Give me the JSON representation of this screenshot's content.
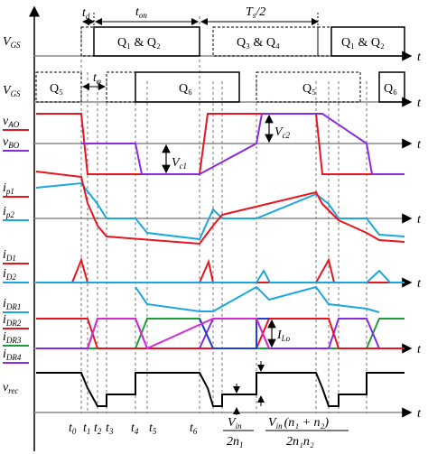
{
  "rows": {
    "vgs1": "V",
    "vgs1_sub": "GS",
    "vgs2": "V",
    "vgs2_sub": "GS",
    "vao": "v",
    "vao_sub": "AO",
    "vbo": "v",
    "vbo_sub": "BO",
    "ip1": "i",
    "ip1_sub": "p1",
    "ip2": "i",
    "ip2_sub": "p2",
    "id1": "i",
    "id1_sub": "D1",
    "id2": "i",
    "id2_sub": "D2",
    "idr1": "i",
    "idr1_sub": "DR1",
    "idr2": "i",
    "idr2_sub": "DR2",
    "idr3": "i",
    "idr3_sub": "DR3",
    "idr4": "i",
    "idr4_sub": "DR4",
    "vrec": "v",
    "vrec_sub": "rec"
  },
  "time_axis": "t",
  "intervals": {
    "td": "t",
    "td_sub": "d",
    "ton": "t",
    "ton_sub": "on",
    "ts": "T",
    "ts_sub": "s",
    "ts_tail": "/2",
    "tphi": "t",
    "tphi_sub": "φ"
  },
  "gates_top": [
    "Q₁ & Q₂",
    "Q₃ & Q₄",
    "Q₁ & Q₂"
  ],
  "gates_bottom": [
    "Q₅",
    "Q₆",
    "Q₅",
    "Q₆"
  ],
  "annotations": {
    "vc1": "V",
    "vc1_sub": "c1",
    "vc2": "V",
    "vc2_sub": "c2",
    "ilo": "I",
    "ilo_sub": "Lo",
    "vin_frac1_num": "V",
    "vin_frac1_num_sub": "in",
    "vin_frac1_den": "2n",
    "vin_frac1_den_sub": "1",
    "vin_frac2_num": "V",
    "vin_frac2_num_sub": "in",
    "vin_frac2_paren": "(n₁ + n₂)",
    "vin_frac2_den": "2n₁n₂"
  },
  "time_markers": [
    {
      "label": "t",
      "sub": "0"
    },
    {
      "label": "t",
      "sub": "1"
    },
    {
      "label": "t",
      "sub": "2"
    },
    {
      "label": "t",
      "sub": "3"
    },
    {
      "label": "t",
      "sub": "4"
    },
    {
      "label": "t",
      "sub": "5"
    },
    {
      "label": "t",
      "sub": "6"
    }
  ],
  "colors": {
    "red": "#e8141e",
    "purple": "#8a2be2",
    "cyan": "#1aa7e0",
    "blue": "#1f3fd6",
    "magenta": "#d42bd4",
    "green": "#1e9e3a",
    "axis": "#8a8a8a"
  }
}
